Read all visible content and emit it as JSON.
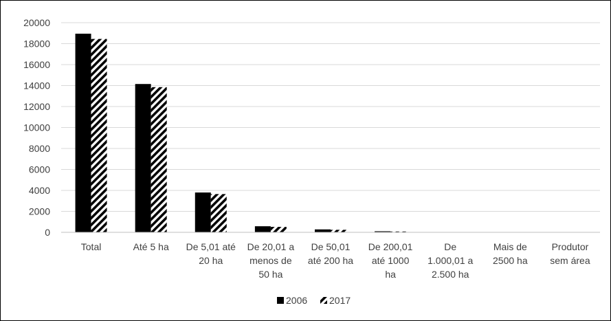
{
  "chart_data": {
    "type": "bar",
    "title": "",
    "xlabel": "",
    "ylabel": "",
    "ylim": [
      0,
      20000
    ],
    "yticks": [
      0,
      2000,
      4000,
      6000,
      8000,
      10000,
      12000,
      14000,
      16000,
      18000,
      20000
    ],
    "grid": true,
    "legend_position": "bottom",
    "categories": [
      [
        "Total"
      ],
      [
        "Até 5 ha"
      ],
      [
        "De 5,01 até",
        "20 ha"
      ],
      [
        "De 20,01 a",
        "menos de",
        "50 ha"
      ],
      [
        "De 50,01",
        "até 200 ha"
      ],
      [
        "De 200,01",
        "até 1000",
        "ha"
      ],
      [
        "De",
        "1.000,01 a",
        "2.500 ha"
      ],
      [
        "Mais de",
        "2500 ha"
      ],
      [
        "Produtor",
        "sem área"
      ]
    ],
    "series": [
      {
        "name": "2006",
        "color": "#000000",
        "pattern": "solid",
        "values": [
          18950,
          14150,
          3800,
          580,
          280,
          100,
          10,
          3,
          5
        ]
      },
      {
        "name": "2017",
        "color": "#000000",
        "pattern": "diagonal-stripes",
        "values": [
          18450,
          13850,
          3650,
          520,
          240,
          80,
          8,
          2,
          3
        ]
      }
    ]
  }
}
